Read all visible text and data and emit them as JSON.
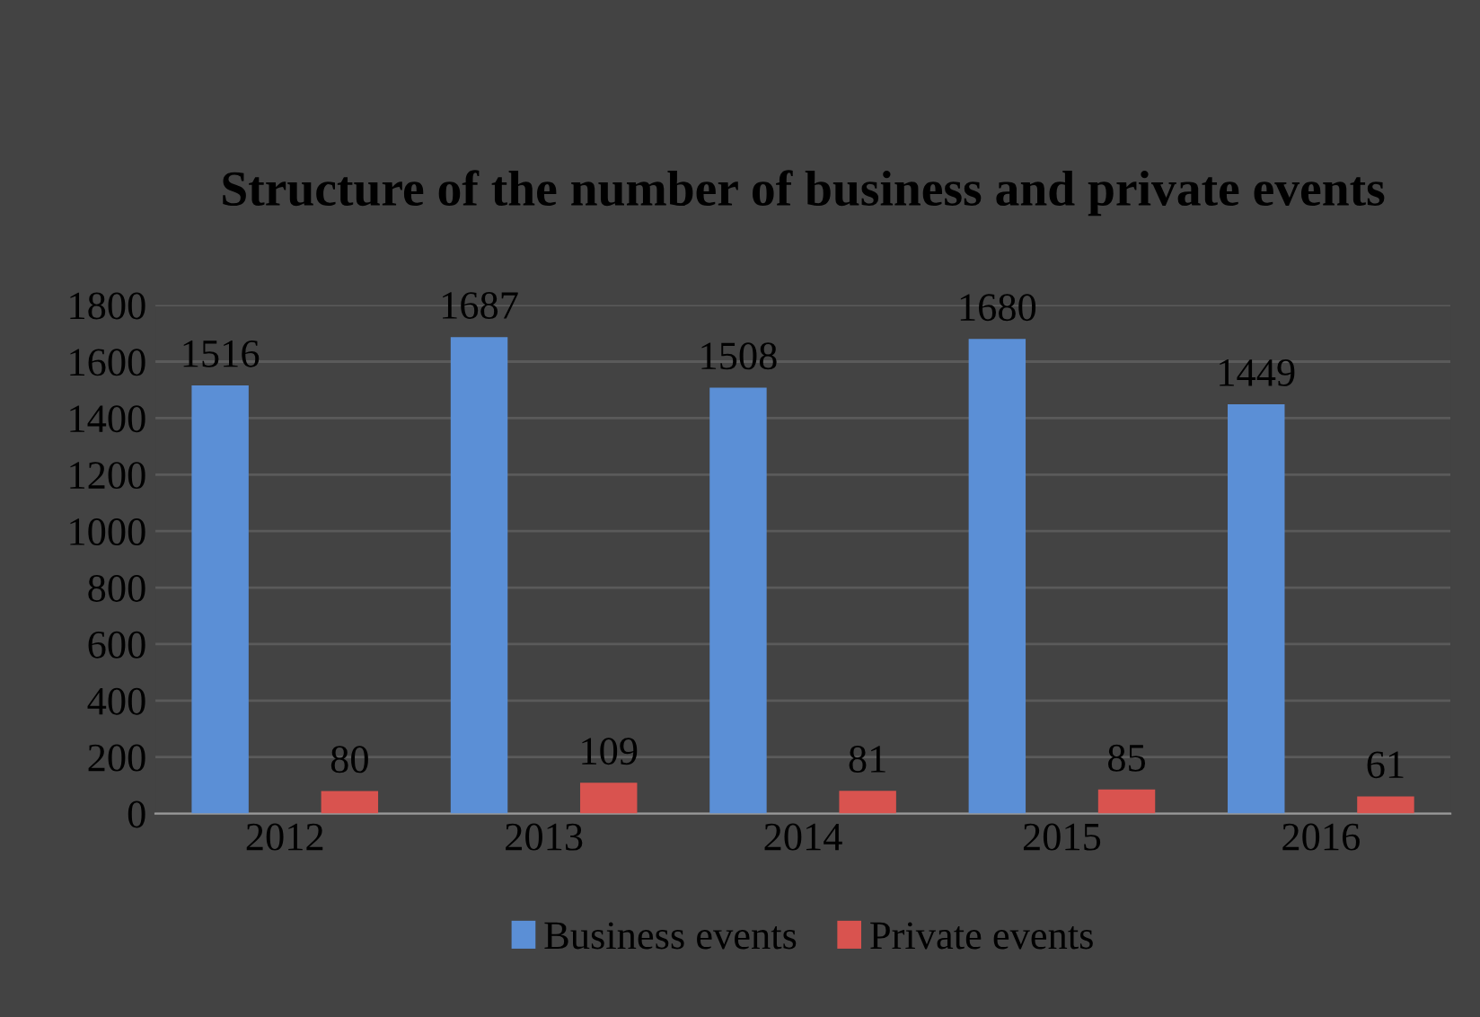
{
  "chart_data": {
    "type": "bar",
    "title": "Structure of the number of business and private events",
    "categories": [
      "2012",
      "2013",
      "2014",
      "2015",
      "2016"
    ],
    "series": [
      {
        "name": "Business events",
        "color": "#5b8fd6",
        "values": [
          1516,
          1687,
          1508,
          1680,
          1449
        ]
      },
      {
        "name": "Private events",
        "color": "#d9534f",
        "values": [
          80,
          109,
          81,
          85,
          61
        ]
      }
    ],
    "ylim": [
      0,
      1800
    ],
    "yticks": [
      0,
      200,
      400,
      600,
      800,
      1000,
      1200,
      1400,
      1600,
      1800
    ],
    "grid": "y",
    "legend": "bottom",
    "data_labels": true
  }
}
